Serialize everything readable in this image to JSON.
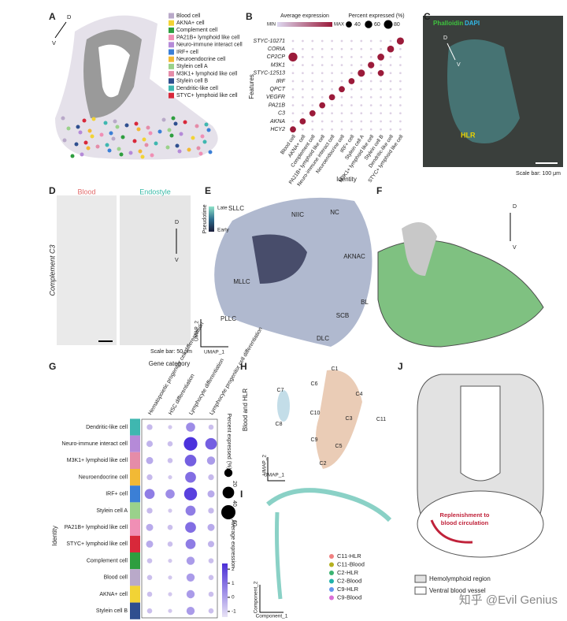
{
  "panels": {
    "A": {
      "label": "A",
      "orient": [
        "D",
        "V"
      ],
      "legend": [
        "Blood cell",
        "AKNA+ cell",
        "Complement cell",
        "PA21B+ lymphoid like cell",
        "Neuro-immune interact cell",
        "IRF+ cell",
        "Neuroendocrine cell",
        "Stylein cell A",
        "M3K1+ lymphoid like cell",
        "Stylein cell B",
        "Dendritic-like cell",
        "STYC+ lymphoid like cell"
      ],
      "colors": [
        "#b9a9c9",
        "#f2d335",
        "#2e9e3f",
        "#f08fb5",
        "#b58ad8",
        "#3b7fd6",
        "#f2b935",
        "#9ad18b",
        "#e58ca8",
        "#2f4f8f",
        "#3fb7b0",
        "#d8283a"
      ]
    },
    "B": {
      "label": "B",
      "color_title": "Average expression",
      "color_min": "MIN",
      "color_max": "MAX",
      "size_title": "Percent expressed (%)",
      "size_ticks": [
        40,
        60,
        80
      ],
      "features": [
        "STYC-10271",
        "CORIA",
        "CP2CP",
        "M3K1",
        "STYC-12513",
        "IRF",
        "QPCT",
        "VEGFR",
        "PA21B",
        "C3",
        "AKNA",
        "HCY2"
      ],
      "identities": [
        "Blood cell",
        "AKNA+ cell",
        "Complement cell",
        "PA21B+ lymphoid like cell",
        "Neuro-immune interact cell",
        "Neuroendocrine cell",
        "IRF+ cell",
        "Stylein cell A",
        "M3K1+ lymphoid like cell",
        "Stylein cell B",
        "Dendritic-like cell",
        "STYC+ lymphoid like cell"
      ],
      "percent": [
        [
          5,
          5,
          5,
          5,
          5,
          5,
          5,
          5,
          5,
          5,
          5,
          55
        ],
        [
          5,
          5,
          5,
          5,
          5,
          5,
          5,
          5,
          5,
          5,
          50,
          5
        ],
        [
          85,
          5,
          5,
          5,
          5,
          5,
          5,
          5,
          5,
          50,
          5,
          5
        ],
        [
          5,
          5,
          5,
          5,
          5,
          5,
          5,
          5,
          45,
          5,
          5,
          5
        ],
        [
          5,
          5,
          5,
          5,
          5,
          5,
          5,
          55,
          5,
          40,
          5,
          5
        ],
        [
          5,
          5,
          5,
          5,
          5,
          5,
          40,
          5,
          5,
          5,
          5,
          5
        ],
        [
          5,
          5,
          5,
          5,
          5,
          40,
          5,
          5,
          5,
          5,
          5,
          5
        ],
        [
          5,
          5,
          5,
          5,
          40,
          5,
          5,
          5,
          5,
          5,
          5,
          5
        ],
        [
          5,
          5,
          5,
          40,
          5,
          5,
          5,
          5,
          5,
          5,
          5,
          5
        ],
        [
          5,
          5,
          40,
          5,
          5,
          5,
          5,
          5,
          5,
          5,
          5,
          5
        ],
        [
          5,
          40,
          5,
          5,
          5,
          5,
          5,
          5,
          5,
          5,
          5,
          5
        ],
        [
          40,
          5,
          5,
          5,
          5,
          5,
          5,
          5,
          5,
          5,
          5,
          5
        ]
      ],
      "y_label": "Features",
      "x_label": "Identity"
    },
    "C": {
      "label": "C",
      "stain1": "Phalloidin",
      "stain2": "DAPI",
      "region": "HLR",
      "orient": [
        "D",
        "V"
      ],
      "scale_bar": "Scale bar: 100 μm"
    },
    "D": {
      "label": "D",
      "col1": "Blood",
      "col2": "Endostyle",
      "row": "Complement C3",
      "orient": [
        "D",
        "V"
      ],
      "scale_bar": "Scale bar: 50 μm"
    },
    "E": {
      "label": "E",
      "color_title": "Pseudotime",
      "late": "Late",
      "early": "Early",
      "clusters": [
        "SLLC",
        "NIIC",
        "NC",
        "AKNAC",
        "MLLC",
        "PLLC",
        "BL",
        "SCB",
        "DLC"
      ],
      "x_axis": "UMAP_1",
      "y_axis": "UMAP_2"
    },
    "F": {
      "label": "F",
      "orient": [
        "D",
        "V"
      ]
    },
    "G": {
      "label": "G",
      "title": "Gene category",
      "categories": [
        "Hematopoietic progenitor cell differentiation",
        "HSC differentiation",
        "Lymphocyte differentiation",
        "Lymphocyte progenitor cell differentiation"
      ],
      "identities": [
        "Dendritic-like cell",
        "Neuro-immune interact cell",
        "M3K1+ lymphoid like cell",
        "Neuroendocrine cell",
        "IRF+ cell",
        "Stylein cell A",
        "PA21B+ lymphoid like cell",
        "STYC+ lymphoid like cell",
        "Complement cell",
        "Blood cell",
        "AKNA+ cell",
        "Stylein cell B"
      ],
      "colors": [
        "#3fb7b0",
        "#b58ad8",
        "#e58ca8",
        "#f2b935",
        "#3b7fd6",
        "#9ad18b",
        "#f08fb5",
        "#d8283a",
        "#2e9e3f",
        "#b9a9c9",
        "#f2d335",
        "#2f4f8f"
      ],
      "percent": [
        [
          10,
          5,
          25,
          8
        ],
        [
          12,
          8,
          55,
          40
        ],
        [
          15,
          8,
          40,
          20
        ],
        [
          10,
          5,
          35,
          10
        ],
        [
          30,
          25,
          50,
          15
        ],
        [
          10,
          5,
          30,
          10
        ],
        [
          15,
          8,
          35,
          15
        ],
        [
          15,
          8,
          30,
          12
        ],
        [
          8,
          5,
          20,
          8
        ],
        [
          8,
          5,
          20,
          8
        ],
        [
          8,
          5,
          20,
          8
        ],
        [
          8,
          5,
          20,
          8
        ]
      ],
      "y_label": "Identity",
      "size_title": "Percent expressed (%)",
      "size_ticks": [
        20,
        40,
        60
      ],
      "color_title": "Average expression",
      "color_ticks": [
        2,
        1,
        0,
        -1
      ],
      "color_lim": [
        -1.4,
        2.4
      ]
    },
    "H": {
      "label": "H",
      "title": "Blood and HLR",
      "clusters": [
        "C1",
        "C6",
        "C4",
        "C7",
        "C10",
        "C3",
        "C11",
        "C8",
        "C9",
        "C5",
        "C2"
      ],
      "x_axis": "UMAP_1",
      "y_axis": "UMAP_2"
    },
    "I": {
      "label": "I",
      "legend": [
        "C11-HLR",
        "C11-Blood",
        "C2-HLR",
        "C2-Blood",
        "C9-HLR",
        "C9-Blood"
      ],
      "colors": [
        "#f08080",
        "#b5b020",
        "#3cb371",
        "#20b2aa",
        "#6495ed",
        "#da70d6"
      ],
      "x_axis": "Component_1",
      "y_axis": "Component_2"
    },
    "J": {
      "label": "J",
      "annotation": [
        "Replenishment to",
        "blood circulation"
      ],
      "legend": [
        "Hemolymphoid region",
        "Ventral blood vessel"
      ]
    }
  },
  "watermark": "知乎 @Evil Genius"
}
